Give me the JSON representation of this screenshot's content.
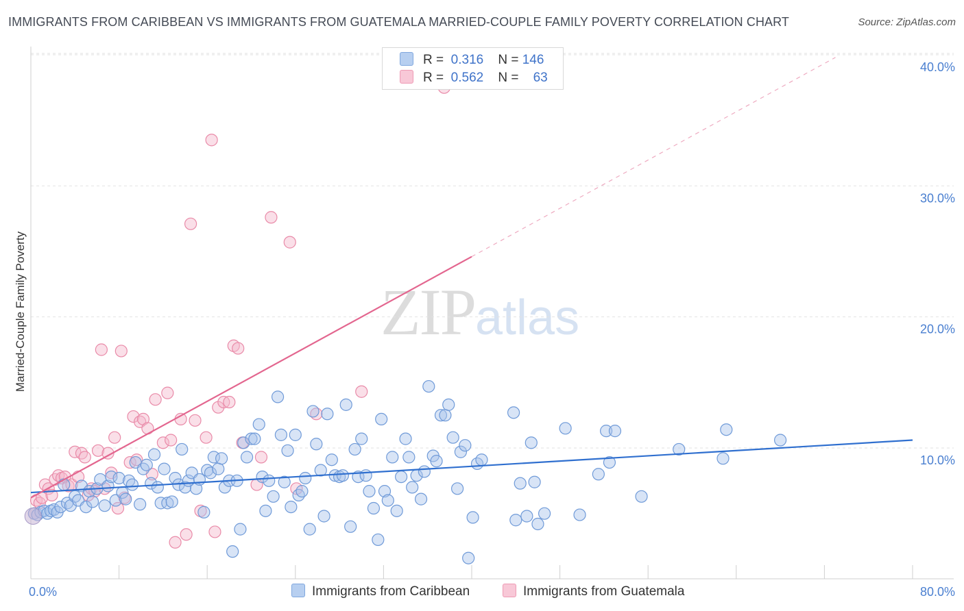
{
  "title": "IMMIGRANTS FROM CARIBBEAN VS IMMIGRANTS FROM GUATEMALA MARRIED-COUPLE FAMILY POVERTY CORRELATION CHART",
  "source": "Source: ZipAtlas.com",
  "watermark": {
    "zip": "ZIP",
    "atlas": "atlas"
  },
  "legend": {
    "r_label": "R =",
    "n_label": "N =",
    "caribbean": {
      "r": "0.316",
      "n": "146"
    },
    "guatemala": {
      "r": "0.562",
      "n": "63"
    }
  },
  "colors": {
    "caribbean_fill": "#a9c4ec",
    "caribbean_stroke": "#6f9ad8",
    "caribbean_line": "#2f6fcf",
    "guatemala_fill": "#f5b9cb",
    "guatemala_stroke": "#e98aa8",
    "guatemala_line": "#e3668f",
    "tick_text": "#4a7fd0"
  },
  "chart_data": {
    "type": "scatter",
    "title": "IMMIGRANTS FROM CARIBBEAN VS IMMIGRANTS FROM GUATEMALA MARRIED-COUPLE FAMILY POVERTY CORRELATION CHART",
    "xlabel": "",
    "ylabel": "Married-Couple Family Poverty",
    "xlim": [
      0,
      80
    ],
    "ylim": [
      0,
      40
    ],
    "x_tick_labels": [
      "0.0%",
      "80.0%"
    ],
    "y_ticks": [
      10,
      20,
      30,
      40
    ],
    "y_tick_labels": [
      "10.0%",
      "20.0%",
      "30.0%",
      "40.0%"
    ],
    "grid": true,
    "series": [
      {
        "name": "Immigrants from Caribbean",
        "r": 0.316,
        "n": 146,
        "trend": {
          "x0": 0,
          "y0": 6.6,
          "x1": 80,
          "y1": 10.6
        },
        "points": [
          [
            0.3,
            5.0
          ],
          [
            0.6,
            4.9
          ],
          [
            0.9,
            5.1
          ],
          [
            1.2,
            5.2
          ],
          [
            1.5,
            5.0
          ],
          [
            1.8,
            5.2
          ],
          [
            2.1,
            5.3
          ],
          [
            2.4,
            5.1
          ],
          [
            2.7,
            5.5
          ],
          [
            3.0,
            7.2
          ],
          [
            3.3,
            5.8
          ],
          [
            3.6,
            5.6
          ],
          [
            4.0,
            6.3
          ],
          [
            4.3,
            6.0
          ],
          [
            4.6,
            7.1
          ],
          [
            5.0,
            5.5
          ],
          [
            5.3,
            6.7
          ],
          [
            5.6,
            5.9
          ],
          [
            6.0,
            6.9
          ],
          [
            6.3,
            7.6
          ],
          [
            6.7,
            5.6
          ],
          [
            7.0,
            7.1
          ],
          [
            7.3,
            7.8
          ],
          [
            7.7,
            6.0
          ],
          [
            8.0,
            7.7
          ],
          [
            8.3,
            6.6
          ],
          [
            8.6,
            6.1
          ],
          [
            8.9,
            7.5
          ],
          [
            9.2,
            7.2
          ],
          [
            9.5,
            8.9
          ],
          [
            9.9,
            5.7
          ],
          [
            10.2,
            8.4
          ],
          [
            10.5,
            8.7
          ],
          [
            10.9,
            7.3
          ],
          [
            11.2,
            9.5
          ],
          [
            11.5,
            7.0
          ],
          [
            11.8,
            5.8
          ],
          [
            12.1,
            8.4
          ],
          [
            12.4,
            5.8
          ],
          [
            12.8,
            5.9
          ],
          [
            13.1,
            7.7
          ],
          [
            13.4,
            7.2
          ],
          [
            13.7,
            9.9
          ],
          [
            14.0,
            7.0
          ],
          [
            14.3,
            7.5
          ],
          [
            14.6,
            8.1
          ],
          [
            15.0,
            6.9
          ],
          [
            15.3,
            7.6
          ],
          [
            15.7,
            5.1
          ],
          [
            16.0,
            8.3
          ],
          [
            16.3,
            8.1
          ],
          [
            16.6,
            9.3
          ],
          [
            17.0,
            8.4
          ],
          [
            17.3,
            9.2
          ],
          [
            17.6,
            7.0
          ],
          [
            18.0,
            7.5
          ],
          [
            18.3,
            2.1
          ],
          [
            18.7,
            7.5
          ],
          [
            19.0,
            3.8
          ],
          [
            19.3,
            10.4
          ],
          [
            19.6,
            9.3
          ],
          [
            20.0,
            10.7
          ],
          [
            20.3,
            10.7
          ],
          [
            20.7,
            11.8
          ],
          [
            21.0,
            7.8
          ],
          [
            21.3,
            5.2
          ],
          [
            21.6,
            7.5
          ],
          [
            22.0,
            6.3
          ],
          [
            22.4,
            13.9
          ],
          [
            22.7,
            11.0
          ],
          [
            23.0,
            7.4
          ],
          [
            23.3,
            9.8
          ],
          [
            23.6,
            5.5
          ],
          [
            24.0,
            11.0
          ],
          [
            24.3,
            6.4
          ],
          [
            24.6,
            6.7
          ],
          [
            24.9,
            7.7
          ],
          [
            25.3,
            3.8
          ],
          [
            25.6,
            12.8
          ],
          [
            25.9,
            10.3
          ],
          [
            26.3,
            8.3
          ],
          [
            26.6,
            4.8
          ],
          [
            26.9,
            12.6
          ],
          [
            27.3,
            9.1
          ],
          [
            27.6,
            7.9
          ],
          [
            28.0,
            7.8
          ],
          [
            28.3,
            7.9
          ],
          [
            28.6,
            13.3
          ],
          [
            29.0,
            4.0
          ],
          [
            29.4,
            9.9
          ],
          [
            29.7,
            7.8
          ],
          [
            30.0,
            10.7
          ],
          [
            30.4,
            7.9
          ],
          [
            30.7,
            6.7
          ],
          [
            31.1,
            5.4
          ],
          [
            31.5,
            3.0
          ],
          [
            31.8,
            12.2
          ],
          [
            32.1,
            6.7
          ],
          [
            32.4,
            6.0
          ],
          [
            32.8,
            9.3
          ],
          [
            33.2,
            5.2
          ],
          [
            33.6,
            7.8
          ],
          [
            34.0,
            10.7
          ],
          [
            34.3,
            9.3
          ],
          [
            34.6,
            7.0
          ],
          [
            35.0,
            7.9
          ],
          [
            35.4,
            6.1
          ],
          [
            35.7,
            8.2
          ],
          [
            36.1,
            14.7
          ],
          [
            36.5,
            9.4
          ],
          [
            36.8,
            9.0
          ],
          [
            37.2,
            12.5
          ],
          [
            37.6,
            12.5
          ],
          [
            37.9,
            13.3
          ],
          [
            38.3,
            10.8
          ],
          [
            38.7,
            6.9
          ],
          [
            39.0,
            9.7
          ],
          [
            39.4,
            10.2
          ],
          [
            39.7,
            1.6
          ],
          [
            40.1,
            4.7
          ],
          [
            40.5,
            8.8
          ],
          [
            40.9,
            9.1
          ],
          [
            43.8,
            12.7
          ],
          [
            44.0,
            4.5
          ],
          [
            44.4,
            7.3
          ],
          [
            45.0,
            4.8
          ],
          [
            45.4,
            10.4
          ],
          [
            45.7,
            7.4
          ],
          [
            46.0,
            4.2
          ],
          [
            46.6,
            5.0
          ],
          [
            48.5,
            11.5
          ],
          [
            49.8,
            4.9
          ],
          [
            51.5,
            8.0
          ],
          [
            52.2,
            11.3
          ],
          [
            52.5,
            8.9
          ],
          [
            53.0,
            11.3
          ],
          [
            55.4,
            6.3
          ],
          [
            58.8,
            9.9
          ],
          [
            62.8,
            9.2
          ],
          [
            63.1,
            11.4
          ],
          [
            68.0,
            10.6
          ]
        ]
      },
      {
        "name": "Immigrants from Guatemala",
        "r": 0.562,
        "n": 63,
        "trend": {
          "x0": 0,
          "y0": 6.2,
          "x1": 40,
          "y1": 24.6
        },
        "trend_extension": {
          "x0": 40,
          "y0": 24.6,
          "x1": 73,
          "y1": 39.8
        },
        "points": [
          [
            0.3,
            5.0
          ],
          [
            0.5,
            6.0
          ],
          [
            0.8,
            5.8
          ],
          [
            1.0,
            6.2
          ],
          [
            1.3,
            7.2
          ],
          [
            1.6,
            6.9
          ],
          [
            1.9,
            6.4
          ],
          [
            2.2,
            7.6
          ],
          [
            2.5,
            7.9
          ],
          [
            2.8,
            7.7
          ],
          [
            3.1,
            7.8
          ],
          [
            3.4,
            7.1
          ],
          [
            3.7,
            7.2
          ],
          [
            4.0,
            9.7
          ],
          [
            4.3,
            7.8
          ],
          [
            4.6,
            9.6
          ],
          [
            4.9,
            9.3
          ],
          [
            5.2,
            6.4
          ],
          [
            5.5,
            6.9
          ],
          [
            5.8,
            6.7
          ],
          [
            6.1,
            9.8
          ],
          [
            6.4,
            17.5
          ],
          [
            6.7,
            6.9
          ],
          [
            7.0,
            9.6
          ],
          [
            7.3,
            8.1
          ],
          [
            7.6,
            10.8
          ],
          [
            7.9,
            5.4
          ],
          [
            8.2,
            17.4
          ],
          [
            8.5,
            6.2
          ],
          [
            9.0,
            8.9
          ],
          [
            9.3,
            12.4
          ],
          [
            9.6,
            9.1
          ],
          [
            9.9,
            12.0
          ],
          [
            10.2,
            12.2
          ],
          [
            10.6,
            11.5
          ],
          [
            11.0,
            8.0
          ],
          [
            11.3,
            13.7
          ],
          [
            12.0,
            10.4
          ],
          [
            12.4,
            14.2
          ],
          [
            12.7,
            10.6
          ],
          [
            13.1,
            2.8
          ],
          [
            13.6,
            12.2
          ],
          [
            14.1,
            3.4
          ],
          [
            14.5,
            27.1
          ],
          [
            14.9,
            12.1
          ],
          [
            15.4,
            5.2
          ],
          [
            15.9,
            10.8
          ],
          [
            16.4,
            33.5
          ],
          [
            16.7,
            3.6
          ],
          [
            17.0,
            13.1
          ],
          [
            17.5,
            13.5
          ],
          [
            18.0,
            13.5
          ],
          [
            18.4,
            17.8
          ],
          [
            18.8,
            17.6
          ],
          [
            19.2,
            10.4
          ],
          [
            20.5,
            7.2
          ],
          [
            20.9,
            9.3
          ],
          [
            21.8,
            27.6
          ],
          [
            23.5,
            25.7
          ],
          [
            24.1,
            6.9
          ],
          [
            25.9,
            12.6
          ],
          [
            30.0,
            14.3
          ],
          [
            37.5,
            37.5
          ]
        ]
      }
    ]
  }
}
